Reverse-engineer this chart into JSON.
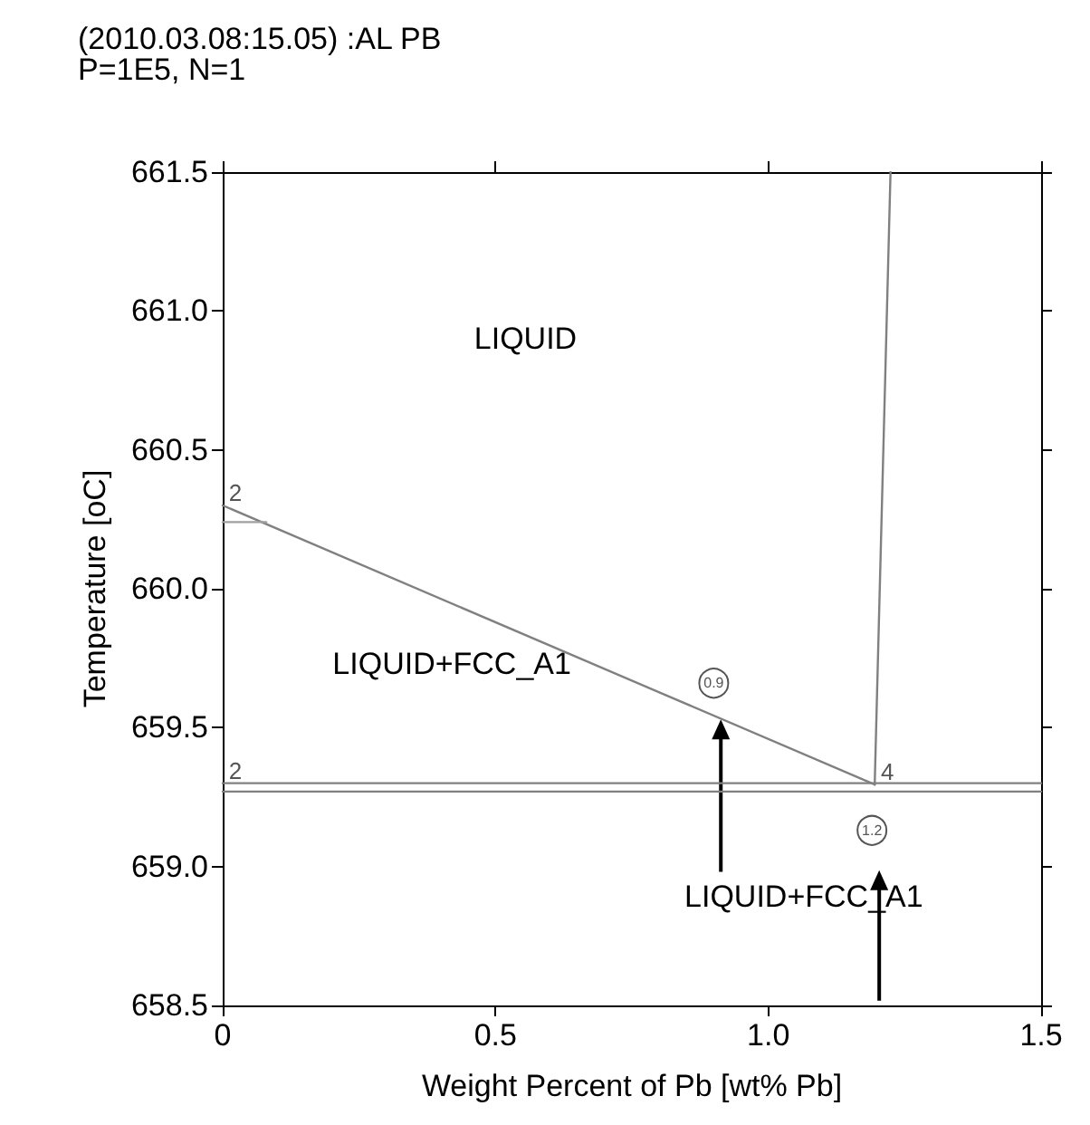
{
  "chart_data": {
    "type": "line",
    "title": "(2010.03.08:15.05) :AL PB",
    "subtitle": "P=1E5, N=1",
    "xlabel": "Weight Percent of Pb [wt% Pb]",
    "ylabel": "Temperature [oC]",
    "xlim": [
      0,
      1.5
    ],
    "xticks": [
      0,
      0.5,
      {
        "value": 1,
        "label": "1.0"
      },
      1.5
    ],
    "ylim": [
      658.5,
      661.5
    ],
    "yticks": [
      658.5,
      {
        "value": 659,
        "label": "659.0"
      },
      659.5,
      {
        "value": 660,
        "label": "660.0"
      },
      660.5,
      {
        "value": 661,
        "label": "661.0"
      },
      661.5
    ],
    "grid": false,
    "marker": "none",
    "line_style": "solid",
    "series": [
      {
        "color": "#808080",
        "x": [
          0,
          1.195
        ],
        "values": [
          660.3,
          659.295
        ]
      },
      {
        "color": "#a0a0a0",
        "x": [
          0,
          0.08
        ],
        "values": [
          660.24,
          660.24
        ]
      },
      {
        "color": "#808080",
        "x": [
          0,
          1.5
        ],
        "values": [
          659.3,
          659.3
        ]
      },
      {
        "color": "#808080",
        "x": [
          0,
          1.5
        ],
        "values": [
          659.27,
          659.27
        ]
      },
      {
        "color": "#808080",
        "x": [
          1.195,
          1.224
        ],
        "values": [
          659.295,
          661.5
        ]
      }
    ],
    "annotations": [
      "LIQUID",
      "LIQUID+FCC_A1",
      {
        "text": "LIQUID+FCC_A1",
        "x": 0.913,
        "y": 659.53
      },
      {
        "text": "2",
        "x": 0,
        "y": 660.3
      },
      {
        "text": "2",
        "x": 0,
        "y": 659.3
      },
      {
        "text": "4",
        "x": 1.195,
        "y": 659.295
      },
      {
        "text": "0.9",
        "x": 0.9,
        "y": 659.66
      },
      {
        "text": "1.2",
        "x": 1.19,
        "y": 659.13
      }
    ]
  }
}
